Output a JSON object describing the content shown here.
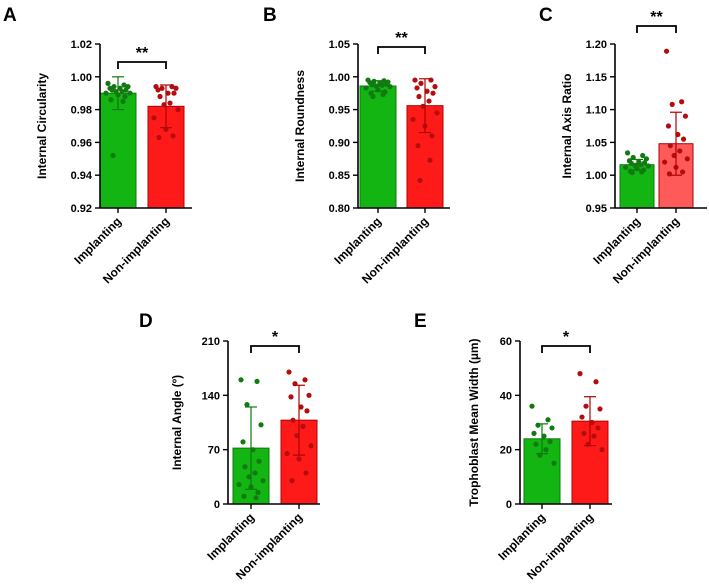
{
  "colors": {
    "implanting_fill": "#12b512",
    "implanting_edge": "#0c7a0c",
    "implanting_dot": "#127a12",
    "nonimplanting_fill": "#ff1a1a",
    "nonimplanting_fill_c": "#ff5a5a",
    "nonimplanting_edge": "#b00000",
    "nonimplanting_dot": "#b50d0d"
  },
  "chart_data": [
    {
      "panel": "A",
      "type": "bar",
      "ylabel": "Internal Circularity",
      "ylim": [
        0.92,
        1.02
      ],
      "yticks": [
        "0.92",
        "0.94",
        "0.96",
        "0.98",
        "1.00",
        "1.02"
      ],
      "ytick_values": [
        0.92,
        0.94,
        0.96,
        0.98,
        1.0,
        1.02
      ],
      "categories": [
        "Implanting",
        "Non-implanting"
      ],
      "means": [
        0.99,
        0.982
      ],
      "sd": [
        0.01,
        0.013
      ],
      "significance": "**",
      "points": [
        [
          0.996,
          0.995,
          0.994,
          0.994,
          0.993,
          0.993,
          0.992,
          0.992,
          0.991,
          0.991,
          0.99,
          0.99,
          0.989,
          0.988,
          0.986,
          0.985,
          0.952
        ],
        [
          0.994,
          0.994,
          0.993,
          0.993,
          0.992,
          0.99,
          0.99,
          0.988,
          0.984,
          0.983,
          0.98,
          0.975,
          0.968,
          0.964,
          0.963
        ]
      ]
    },
    {
      "panel": "B",
      "type": "bar",
      "ylabel": "Internal Roundness",
      "ylim": [
        0.8,
        1.05
      ],
      "yticks": [
        "0.80",
        "0.85",
        "0.90",
        "0.95",
        "1.00",
        "1.05"
      ],
      "ytick_values": [
        0.8,
        0.85,
        0.9,
        0.95,
        1.0,
        1.05
      ],
      "categories": [
        "Implanting",
        "Non-implanting"
      ],
      "means": [
        0.986,
        0.956
      ],
      "sd": [
        0.008,
        0.041
      ],
      "significance": "**",
      "points": [
        [
          0.995,
          0.994,
          0.993,
          0.992,
          0.991,
          0.99,
          0.989,
          0.988,
          0.987,
          0.986,
          0.985,
          0.983,
          0.98,
          0.977,
          0.975,
          0.973,
          0.97
        ],
        [
          0.995,
          0.995,
          0.99,
          0.985,
          0.983,
          0.978,
          0.975,
          0.97,
          0.963,
          0.955,
          0.945,
          0.935,
          0.925,
          0.91,
          0.895,
          0.873,
          0.842
        ]
      ]
    },
    {
      "panel": "C",
      "type": "bar",
      "ylabel": "Internal Axis Ratio",
      "ylim": [
        0.95,
        1.2
      ],
      "yticks": [
        "0.95",
        "1.00",
        "1.05",
        "1.10",
        "1.15",
        "1.20"
      ],
      "ytick_values": [
        0.95,
        1.0,
        1.05,
        1.1,
        1.15,
        1.2
      ],
      "categories": [
        "Implanting",
        "Non-implanting"
      ],
      "means": [
        1.016,
        1.048
      ],
      "sd": [
        0.008,
        0.048
      ],
      "significance": "**",
      "points": [
        [
          1.034,
          1.03,
          1.027,
          1.025,
          1.022,
          1.02,
          1.019,
          1.018,
          1.016,
          1.015,
          1.014,
          1.012,
          1.01,
          1.008,
          1.006,
          1.005,
          1.004
        ],
        [
          1.189,
          1.112,
          1.108,
          1.09,
          1.075,
          1.062,
          1.055,
          1.045,
          1.037,
          1.03,
          1.025,
          1.02,
          1.012,
          1.005,
          1.002
        ]
      ]
    },
    {
      "panel": "D",
      "type": "bar",
      "ylabel": "Internal Angle (º)",
      "ylim": [
        0,
        210
      ],
      "yticks": [
        "0",
        "70",
        "140",
        "210"
      ],
      "ytick_values": [
        0,
        70,
        140,
        210
      ],
      "categories": [
        "Implanting",
        "Non-implanting"
      ],
      "means": [
        72,
        108
      ],
      "sd": [
        53,
        45
      ],
      "significance": "*",
      "points": [
        [
          160,
          158,
          128,
          102,
          80,
          70,
          55,
          48,
          40,
          35,
          30,
          25,
          22,
          15,
          10,
          8
        ],
        [
          170,
          160,
          155,
          140,
          138,
          125,
          120,
          108,
          100,
          88,
          75,
          65,
          58,
          40,
          30
        ]
      ]
    },
    {
      "panel": "E",
      "type": "bar",
      "ylabel": "Trophoblast Mean Width (µm)",
      "ylim": [
        0,
        60
      ],
      "yticks": [
        "0",
        "20",
        "40",
        "60"
      ],
      "ytick_values": [
        0,
        20,
        40,
        60
      ],
      "categories": [
        "Implanting",
        "Non-implanting"
      ],
      "means": [
        24,
        30.5
      ],
      "sd": [
        5.5,
        9
      ],
      "significance": "*",
      "points": [
        [
          36,
          31,
          29,
          28,
          26,
          25,
          23,
          22,
          20,
          18,
          15
        ],
        [
          48,
          45,
          36,
          35,
          32,
          30,
          28,
          26,
          25,
          22,
          20
        ]
      ]
    }
  ]
}
